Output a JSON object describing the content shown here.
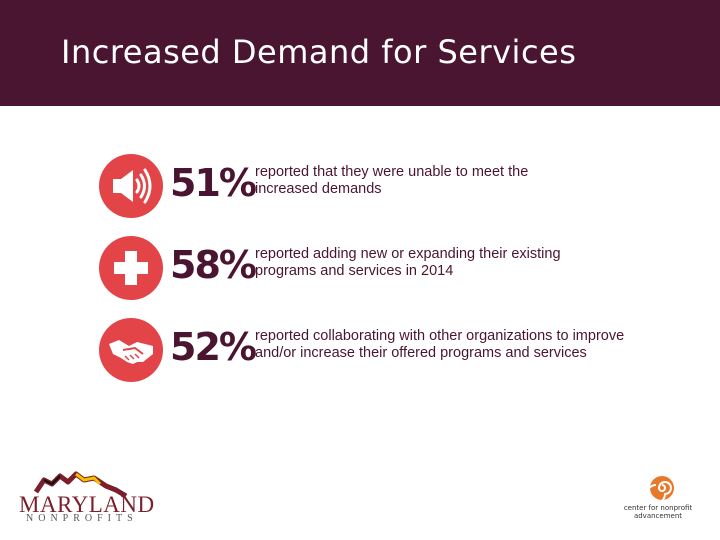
{
  "slide": {
    "title": "Increased Demand for Services"
  },
  "stats": [
    {
      "icon": "megaphone-icon",
      "percent": "51%",
      "line1": "reported that they were unable to meet the",
      "line2": "increased demands"
    },
    {
      "icon": "medical-cross-icon",
      "percent": "58%",
      "line1": "reported adding new or expanding their existing",
      "line2": "programs and services in 2014"
    },
    {
      "icon": "handshake-icon",
      "percent": "52%",
      "line1": "reported collaborating with other organizations to improve",
      "line2": "and/or increase their offered programs and services"
    }
  ],
  "logos": {
    "left": {
      "name": "MARYLAND",
      "sub": "NONPROFITS"
    },
    "right": {
      "line1": "center for nonprofit",
      "line2": "advancement"
    }
  },
  "colors": {
    "header_bg": "#4a1530",
    "accent_red": "#e24448",
    "text_maroon": "#4a1530",
    "orange": "#e8792b"
  }
}
